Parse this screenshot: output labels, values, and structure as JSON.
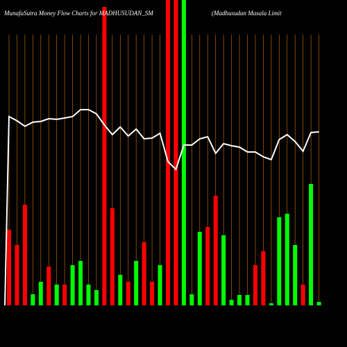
{
  "chart_data": {
    "type": "bar",
    "title": "MunafaSutra  Money  Flow  Charts for MADHUSUDAN_SM",
    "subtitle": "(Madhusudan  Masala  Limit",
    "ylim": [
      0,
      440
    ],
    "values": [
      109,
      87,
      145,
      16,
      34,
      56,
      30,
      30,
      58,
      64,
      30,
      22,
      430,
      140,
      44,
      34,
      64,
      91,
      34,
      58,
      440,
      440,
      440,
      16,
      106,
      113,
      158,
      101,
      8,
      15,
      15,
      58,
      78,
      3,
      127,
      132,
      87,
      30,
      175,
      5
    ],
    "colors": [
      "#ff0000",
      "#ff0000",
      "#ff0000",
      "#00ff00",
      "#00ff00",
      "#ff0000",
      "#00ff00",
      "#ff0000",
      "#00ff00",
      "#00ff00",
      "#00ff00",
      "#00ff00",
      "#ff0000",
      "#ff0000",
      "#00ff00",
      "#ff0000",
      "#00ff00",
      "#ff0000",
      "#ff0000",
      "#00ff00",
      "#ff0000",
      "#ff0000",
      "#00ff00",
      "#00ff00",
      "#00ff00",
      "#ff0000",
      "#ff0000",
      "#00ff00",
      "#00ff00",
      "#00ff00",
      "#00ff00",
      "#ff0000",
      "#ff0000",
      "#00ff00",
      "#00ff00",
      "#00ff00",
      "#00ff00",
      "#ff0000",
      "#00ff00",
      "#00ff00"
    ],
    "line_values": [
      272,
      266,
      258,
      264,
      265,
      269,
      268,
      270,
      272,
      282,
      282,
      276,
      260,
      246,
      257,
      244,
      254,
      240,
      241,
      248,
      207,
      196,
      231,
      231,
      240,
      243,
      219,
      233,
      230,
      228,
      221,
      221,
      214,
      210,
      239,
      246,
      236,
      222,
      249,
      250
    ],
    "line_color": "#ffffff"
  }
}
